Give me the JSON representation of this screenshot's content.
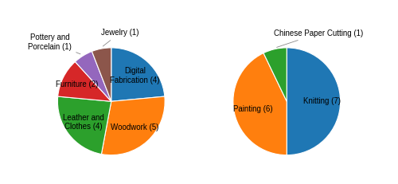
{
  "chart_data": [
    {
      "type": "pie",
      "categories": [
        "Digital\nFabrication (4)",
        "Woodwork (5)",
        "Leather and\nClothes (4)",
        "Furniture (2)",
        "Pottery and\nPorcelain (1)",
        "Jewelry (1)"
      ],
      "values": [
        4,
        5,
        4,
        2,
        1,
        1
      ]
    },
    {
      "type": "pie",
      "categories": [
        "Knitting (7)",
        "Painting (6)",
        "Chinese Paper Cutting (1)"
      ],
      "values": [
        7,
        6,
        1
      ]
    }
  ]
}
